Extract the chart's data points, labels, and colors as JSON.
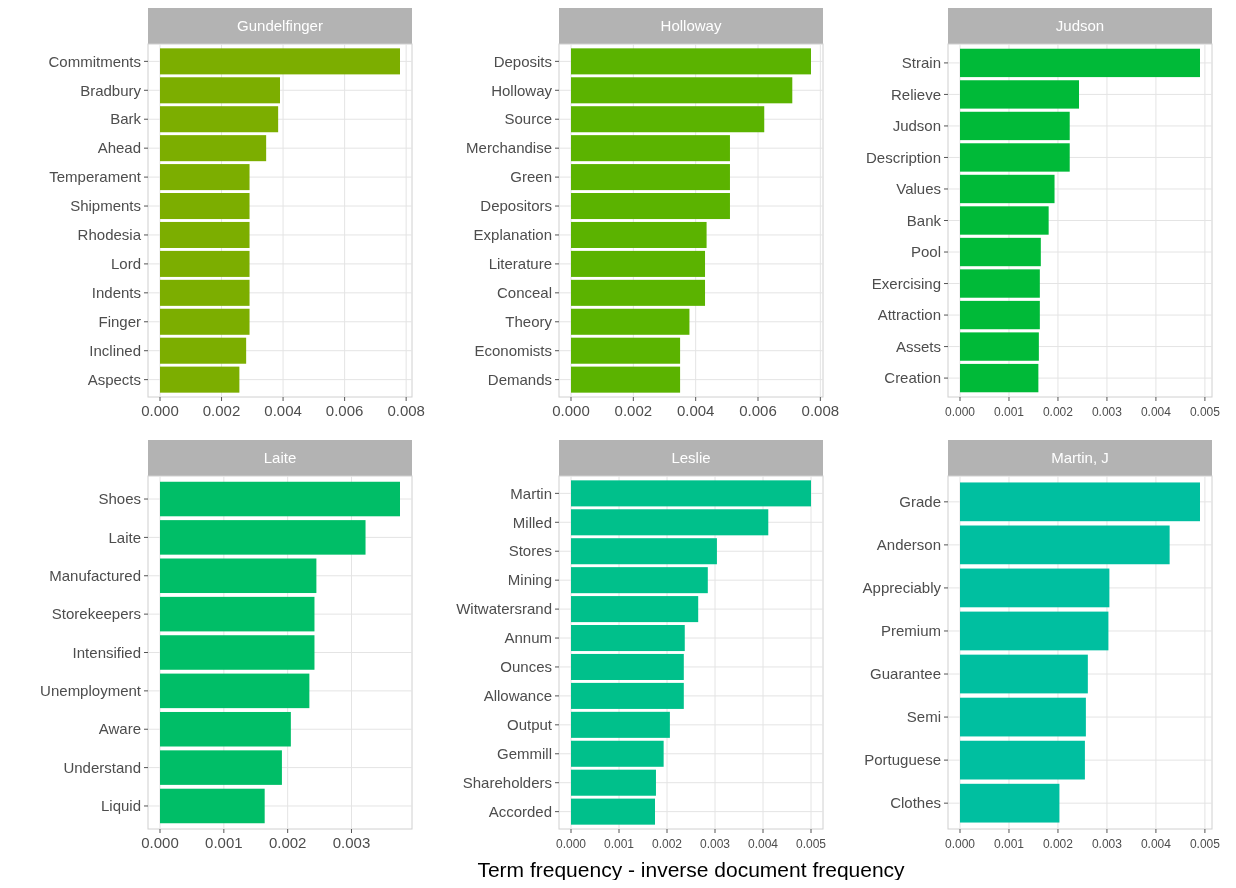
{
  "chart_data": [
    {
      "type": "bar",
      "orientation": "horizontal",
      "title": "Gundelfinger",
      "categories": [
        "Commitments",
        "Bradbury",
        "Bark",
        "Ahead",
        "Temperament",
        "Shipments",
        "Rhodesia",
        "Lord",
        "Indents",
        "Finger",
        "Inclined",
        "Aspects"
      ],
      "values": [
        0.0078,
        0.0039,
        0.00384,
        0.00345,
        0.00291,
        0.00291,
        0.00291,
        0.00291,
        0.00291,
        0.00291,
        0.0028,
        0.00258
      ],
      "color": "#7cae00",
      "xlim": [
        -0.00039,
        0.00819
      ],
      "xticks": [
        {
          "value": 0,
          "label": "0.000"
        },
        {
          "value": 0.002,
          "label": "0.002"
        },
        {
          "value": 0.004,
          "label": "0.004"
        },
        {
          "value": 0.006,
          "label": "0.006"
        },
        {
          "value": 0.008,
          "label": "0.008"
        }
      ],
      "grid": true
    },
    {
      "type": "bar",
      "orientation": "horizontal",
      "title": "Holloway",
      "categories": [
        "Deposits",
        "Holloway",
        "Source",
        "Merchandise",
        "Green",
        "Depositors",
        "Explanation",
        "Literature",
        "Conceal",
        "Theory",
        "Economists",
        "Demands"
      ],
      "values": [
        0.0077,
        0.0071,
        0.0062,
        0.0051,
        0.0051,
        0.0051,
        0.00435,
        0.0043,
        0.0043,
        0.0038,
        0.0035,
        0.0035
      ],
      "color": "#5bb300",
      "xlim": [
        -0.000385,
        0.008085
      ],
      "xticks": [
        {
          "value": 0,
          "label": "0.000"
        },
        {
          "value": 0.002,
          "label": "0.002"
        },
        {
          "value": 0.004,
          "label": "0.004"
        },
        {
          "value": 0.006,
          "label": "0.006"
        },
        {
          "value": 0.008,
          "label": "0.008"
        }
      ],
      "grid": true
    },
    {
      "type": "bar",
      "orientation": "horizontal",
      "title": "Judson",
      "categories": [
        "Strain",
        "Relieve",
        "Judson",
        "Description",
        "Values",
        "Bank",
        "Pool",
        "Exercising",
        "Attraction",
        "Assets",
        "Creation"
      ],
      "values": [
        0.0049,
        0.00243,
        0.00224,
        0.00224,
        0.00193,
        0.00181,
        0.00165,
        0.00163,
        0.00163,
        0.00161,
        0.0016
      ],
      "color": "#00ba38",
      "xlim": [
        -0.000245,
        0.005145
      ],
      "xticks": [
        {
          "value": 0,
          "label": "0.000"
        },
        {
          "value": 0.001,
          "label": "0.001"
        },
        {
          "value": 0.002,
          "label": "0.002"
        },
        {
          "value": 0.003,
          "label": "0.003"
        },
        {
          "value": 0.004,
          "label": "0.004"
        },
        {
          "value": 0.005,
          "label": "0.005"
        }
      ],
      "grid": true
    },
    {
      "type": "bar",
      "orientation": "horizontal",
      "title": "Laite",
      "categories": [
        "Shoes",
        "Laite",
        "Manufactured",
        "Storekeepers",
        "Intensified",
        "Unemployment",
        "Aware",
        "Understand",
        "Liquid"
      ],
      "values": [
        0.00376,
        0.00322,
        0.00245,
        0.00242,
        0.00242,
        0.00234,
        0.00205,
        0.00191,
        0.00164
      ],
      "color": "#00be67",
      "xlim": [
        -0.000188,
        0.003948
      ],
      "xticks": [
        {
          "value": 0,
          "label": "0.000"
        },
        {
          "value": 0.001,
          "label": "0.001"
        },
        {
          "value": 0.002,
          "label": "0.002"
        },
        {
          "value": 0.003,
          "label": "0.003"
        }
      ],
      "grid": true
    },
    {
      "type": "bar",
      "orientation": "horizontal",
      "title": "Leslie",
      "categories": [
        "Martin",
        "Milled",
        "Stores",
        "Mining",
        "Witwatersrand",
        "Annum",
        "Ounces",
        "Allowance",
        "Output",
        "Gemmill",
        "Shareholders",
        "Accorded"
      ],
      "values": [
        0.005,
        0.00411,
        0.00304,
        0.00285,
        0.00265,
        0.00237,
        0.00235,
        0.00235,
        0.00206,
        0.00193,
        0.00177,
        0.00175
      ],
      "color": "#00c08b",
      "xlim": [
        -0.00025,
        0.00525
      ],
      "xticks": [
        {
          "value": 0,
          "label": "0.000"
        },
        {
          "value": 0.001,
          "label": "0.001"
        },
        {
          "value": 0.002,
          "label": "0.002"
        },
        {
          "value": 0.003,
          "label": "0.003"
        },
        {
          "value": 0.004,
          "label": "0.004"
        },
        {
          "value": 0.005,
          "label": "0.005"
        }
      ],
      "xlabel": "Term frequency - inverse document frequency",
      "grid": true
    },
    {
      "type": "bar",
      "orientation": "horizontal",
      "title": "Martin, J",
      "categories": [
        "Grade",
        "Anderson",
        "Appreciably",
        "Premium",
        "Guarantee",
        "Semi",
        "Portuguese",
        "Clothes"
      ],
      "values": [
        0.0049,
        0.00428,
        0.00305,
        0.00303,
        0.00261,
        0.00257,
        0.00255,
        0.00203
      ],
      "color": "#00bfa0",
      "xlim": [
        -0.000245,
        0.005145
      ],
      "xticks": [
        {
          "value": 0,
          "label": "0.000"
        },
        {
          "value": 0.001,
          "label": "0.001"
        },
        {
          "value": 0.002,
          "label": "0.002"
        },
        {
          "value": 0.003,
          "label": "0.003"
        },
        {
          "value": 0.004,
          "label": "0.004"
        },
        {
          "value": 0.005,
          "label": "0.005"
        }
      ],
      "grid": true
    }
  ]
}
